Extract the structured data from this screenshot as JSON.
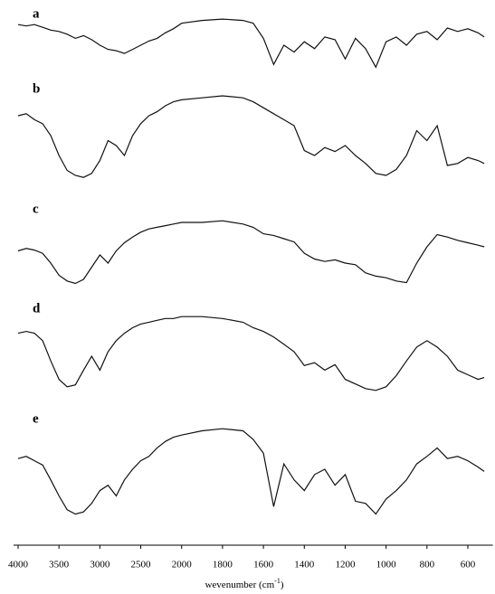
{
  "chart_data": {
    "type": "line",
    "x_label": [
      "wevenumber (cm",
      "-1",
      ")"
    ],
    "x": [
      4000,
      3900,
      3800,
      3700,
      3600,
      3500,
      3400,
      3300,
      3200,
      3100,
      3000,
      2900,
      2800,
      2700,
      2600,
      2500,
      2400,
      2300,
      2200,
      2100,
      2000,
      1900,
      1800,
      1700,
      1650,
      1600,
      1550,
      1500,
      1450,
      1400,
      1350,
      1300,
      1250,
      1200,
      1150,
      1100,
      1050,
      1000,
      950,
      900,
      850,
      800,
      750,
      700,
      650,
      600,
      550,
      520
    ],
    "xlim": [
      4000,
      500
    ],
    "xticks": [
      4000,
      3500,
      3000,
      2500,
      2000,
      1800,
      1600,
      1400,
      1200,
      1000,
      800,
      600
    ],
    "ylim": [
      0,
      100
    ],
    "series": [
      {
        "name": "a",
        "color": "#111111",
        "values": [
          80,
          78,
          80,
          76,
          72,
          70,
          66,
          60,
          64,
          58,
          50,
          44,
          42,
          38,
          44,
          50,
          56,
          60,
          68,
          74,
          82,
          86,
          88,
          86,
          82,
          60,
          22,
          50,
          40,
          55,
          45,
          62,
          58,
          30,
          60,
          45,
          18,
          55,
          62,
          50,
          66,
          70,
          58,
          75,
          70,
          74,
          68,
          62
        ]
      },
      {
        "name": "b",
        "color": "#111111",
        "values": [
          70,
          72,
          66,
          62,
          50,
          30,
          15,
          10,
          8,
          12,
          25,
          45,
          40,
          30,
          50,
          62,
          70,
          74,
          80,
          84,
          86,
          88,
          90,
          88,
          84,
          78,
          72,
          66,
          60,
          35,
          30,
          38,
          34,
          40,
          30,
          22,
          12,
          10,
          16,
          30,
          55,
          45,
          60,
          20,
          22,
          28,
          25,
          22
        ]
      },
      {
        "name": "c",
        "color": "#111111",
        "values": [
          45,
          48,
          46,
          42,
          30,
          15,
          8,
          5,
          10,
          25,
          40,
          30,
          45,
          55,
          62,
          68,
          72,
          74,
          76,
          78,
          80,
          80,
          82,
          78,
          74,
          66,
          64,
          60,
          56,
          42,
          35,
          32,
          34,
          30,
          28,
          18,
          14,
          12,
          8,
          6,
          30,
          50,
          65,
          62,
          58,
          55,
          52,
          50
        ]
      },
      {
        "name": "d",
        "color": "#111111",
        "values": [
          70,
          72,
          70,
          62,
          40,
          20,
          12,
          14,
          30,
          45,
          30,
          50,
          62,
          70,
          76,
          80,
          82,
          84,
          86,
          86,
          88,
          88,
          86,
          82,
          76,
          72,
          66,
          58,
          50,
          35,
          38,
          30,
          36,
          20,
          15,
          10,
          8,
          12,
          24,
          40,
          55,
          62,
          55,
          45,
          30,
          25,
          20,
          22
        ]
      },
      {
        "name": "e",
        "color": "#111111",
        "values": [
          60,
          62,
          58,
          54,
          40,
          25,
          12,
          8,
          10,
          18,
          30,
          35,
          25,
          40,
          50,
          58,
          62,
          70,
          76,
          80,
          82,
          86,
          88,
          86,
          78,
          65,
          15,
          55,
          40,
          30,
          45,
          50,
          35,
          45,
          20,
          18,
          8,
          22,
          30,
          40,
          55,
          62,
          70,
          60,
          62,
          58,
          52,
          48
        ]
      }
    ]
  }
}
